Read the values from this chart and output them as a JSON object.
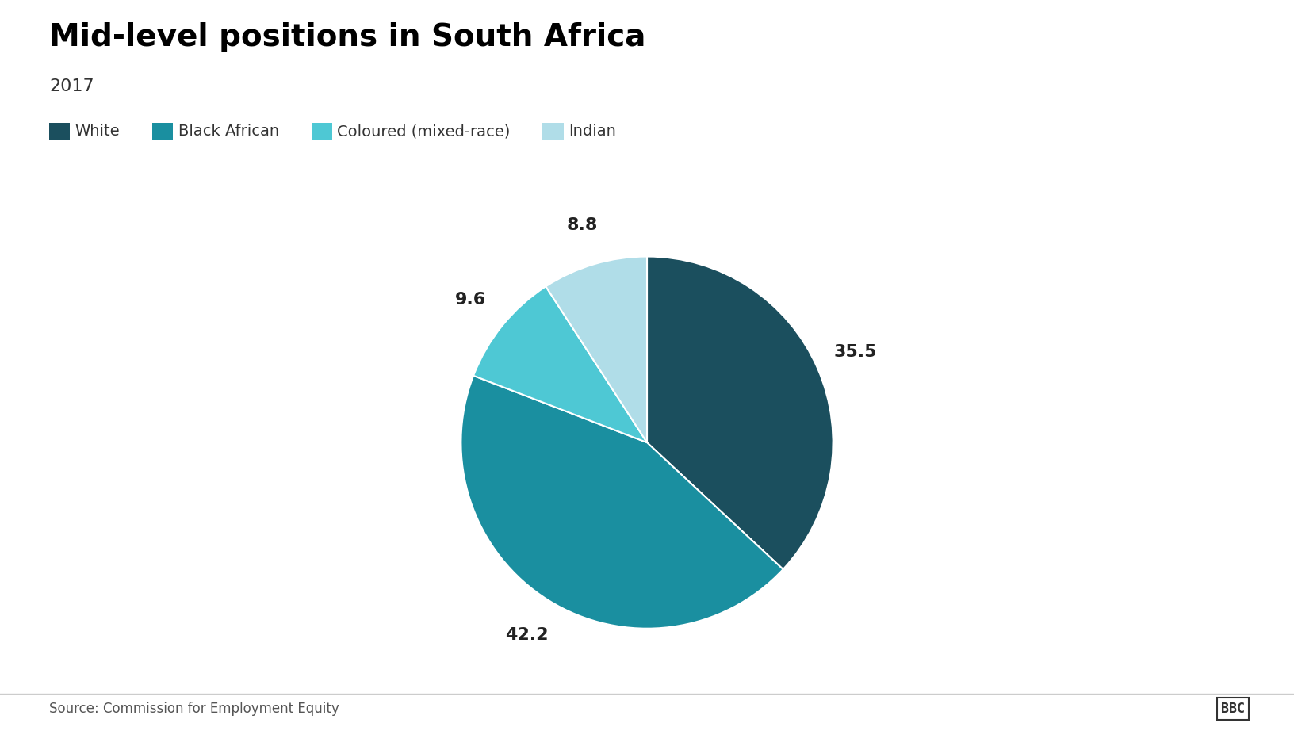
{
  "title": "Mid-level positions in South Africa",
  "subtitle": "2017",
  "labels": [
    "White",
    "Black African",
    "Coloured (mixed-race)",
    "Indian"
  ],
  "values": [
    35.5,
    42.2,
    9.6,
    8.8
  ],
  "colors": [
    "#1b4f5e",
    "#1a8fa0",
    "#4ec8d4",
    "#b0dde8"
  ],
  "label_values": [
    "35.5",
    "42.2",
    "9.6",
    "8.8"
  ],
  "source": "Source: Commission for Employment Equity",
  "bbc_text": "BBC",
  "background_color": "#ffffff",
  "title_fontsize": 28,
  "subtitle_fontsize": 16,
  "legend_fontsize": 14,
  "label_fontsize": 16
}
